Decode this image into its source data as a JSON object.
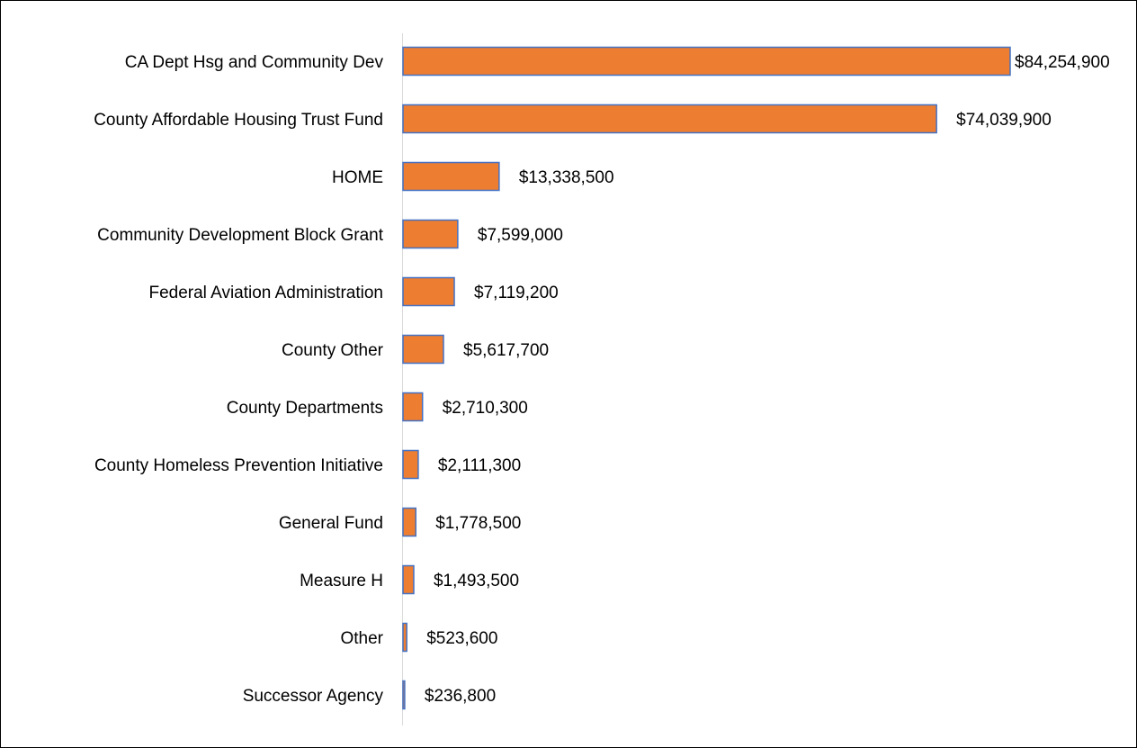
{
  "chart_data": {
    "type": "bar",
    "orientation": "horizontal",
    "categories": [
      "CA Dept Hsg and Community Dev",
      "County Affordable Housing Trust Fund",
      "HOME",
      "Community Development Block Grant",
      "Federal Aviation Administration",
      "County Other",
      "County Departments",
      "County Homeless Prevention Initiative",
      "General Fund",
      "Measure H",
      "Other",
      "Successor Agency"
    ],
    "values": [
      84254900,
      74039900,
      13338500,
      7599000,
      7119200,
      5617700,
      2710300,
      2111300,
      1778500,
      1493500,
      523600,
      236800
    ],
    "value_labels": [
      "$84,254,900",
      "$74,039,900",
      "$13,338,500",
      "$7,599,000",
      "$7,119,200",
      "$5,617,700",
      "$2,710,300",
      "$2,111,300",
      "$1,778,500",
      "$1,493,500",
      "$523,600",
      "$236,800"
    ],
    "title": "",
    "xlabel": "",
    "ylabel": "",
    "xlim": [
      0,
      84254900
    ],
    "grid": false,
    "legend": "none",
    "colors": {
      "bar_fill": "#ED7D31",
      "bar_stroke": "#4472C4",
      "axis": "#D9D9D9",
      "text": "#000000"
    }
  }
}
